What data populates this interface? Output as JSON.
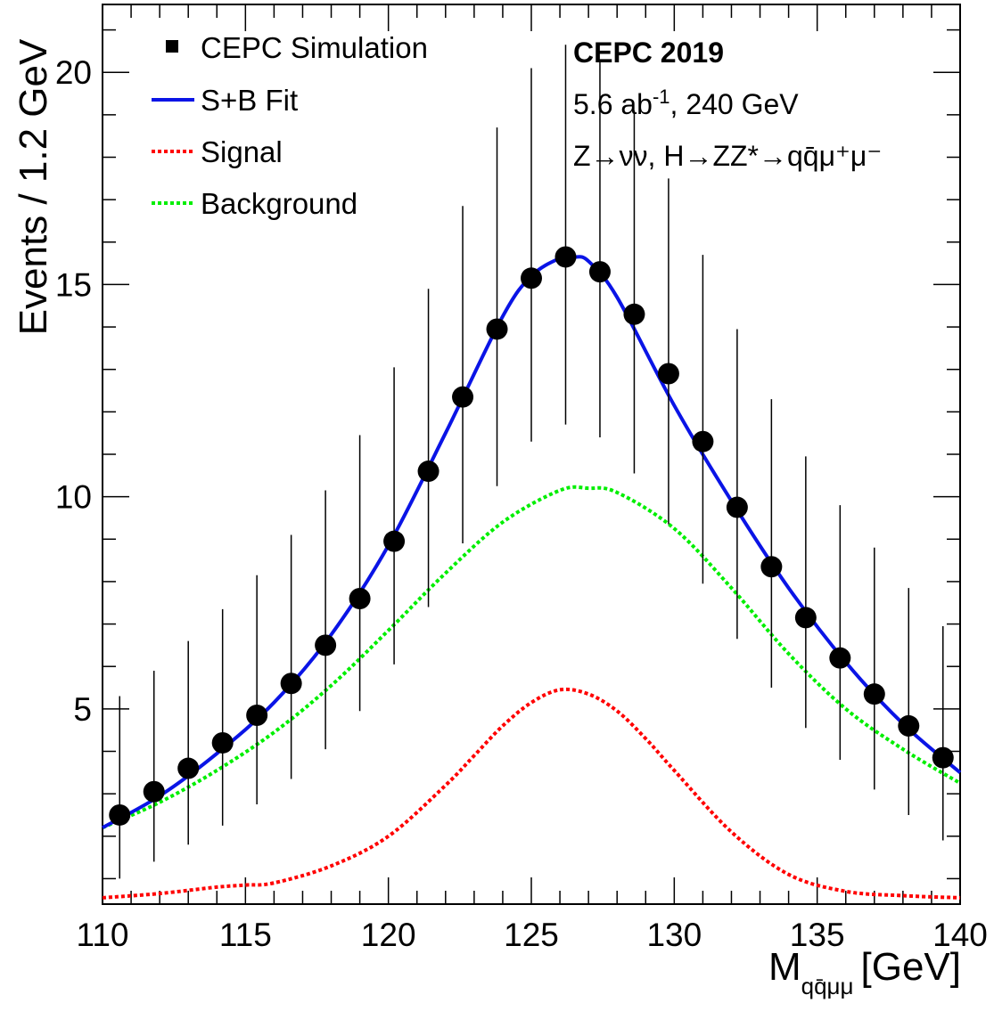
{
  "chart_data": {
    "type": "scatter",
    "xlabel": "M",
    "xlabel_subscript": "qq̄μμ",
    "xlabel_unit": "[GeV]",
    "ylabel": "Events / 1.2  GeV",
    "xlim": [
      110,
      140
    ],
    "ylim": [
      0.4,
      21.6
    ],
    "x_ticks": [
      110,
      115,
      120,
      125,
      130,
      135,
      140
    ],
    "y_ticks": [
      5,
      10,
      15,
      20
    ],
    "grid": false,
    "legend_placement": "top-left",
    "legend": [
      {
        "label": "CEPC Simulation",
        "style": "marker",
        "color": "#000000"
      },
      {
        "label": "S+B Fit",
        "style": "solid",
        "color": "#0a14e6"
      },
      {
        "label": "Signal",
        "style": "dotted",
        "color": "#ff0000"
      },
      {
        "label": "Background",
        "style": "dotted",
        "color": "#00ee00"
      }
    ],
    "annotations": {
      "experiment": "CEPC 2019",
      "lumi_main": "5.6 ab",
      "lumi_sup": "-1",
      "lumi_rest": ", 240 GeV",
      "process": "Z→νν, H→ZZ*→qq̄μ⁺μ⁻"
    },
    "series": [
      {
        "name": "CEPC Simulation",
        "type": "points_with_errors",
        "x": [
          110.6,
          111.8,
          113.0,
          114.2,
          115.4,
          116.6,
          117.8,
          119.0,
          120.2,
          121.4,
          122.6,
          123.8,
          125.0,
          126.2,
          127.4,
          128.6,
          129.8,
          131.0,
          132.2,
          133.4,
          134.6,
          135.8,
          137.0,
          138.2,
          139.4
        ],
        "y": [
          2.5,
          3.05,
          3.6,
          4.2,
          4.85,
          5.6,
          6.5,
          7.6,
          8.95,
          10.6,
          12.35,
          13.95,
          15.15,
          15.65,
          15.3,
          14.3,
          12.9,
          11.3,
          9.75,
          8.35,
          7.15,
          6.2,
          5.35,
          4.6,
          3.85
        ],
        "err_low": [
          1.5,
          1.65,
          1.8,
          1.95,
          2.1,
          2.25,
          2.45,
          2.65,
          2.9,
          3.2,
          3.45,
          3.7,
          3.85,
          3.95,
          3.9,
          3.75,
          3.55,
          3.35,
          3.1,
          2.85,
          2.6,
          2.4,
          2.25,
          2.1,
          1.95
        ],
        "err_high": [
          2.8,
          2.85,
          3.0,
          3.15,
          3.3,
          3.5,
          3.65,
          3.85,
          4.1,
          4.3,
          4.5,
          4.75,
          4.95,
          5.0,
          4.95,
          4.8,
          4.6,
          4.4,
          4.2,
          3.95,
          3.8,
          3.6,
          3.45,
          3.25,
          3.1
        ]
      },
      {
        "name": "S+B Fit",
        "type": "line",
        "x": [
          110,
          112,
          114,
          116,
          118,
          120,
          122,
          124,
          125,
          126,
          126.5,
          127,
          128,
          130,
          132,
          134,
          136,
          138,
          140
        ],
        "y": [
          2.2,
          2.95,
          3.95,
          5.15,
          6.75,
          8.85,
          11.5,
          14.25,
          15.2,
          15.62,
          15.65,
          15.55,
          14.7,
          12.15,
          9.9,
          7.85,
          6.1,
          4.65,
          3.5
        ]
      },
      {
        "name": "Signal",
        "type": "dotted-line",
        "x": [
          110,
          112,
          114,
          115,
          116,
          118,
          120,
          122,
          123,
          124,
          125,
          126,
          127,
          128,
          129,
          130,
          132,
          134,
          136,
          138,
          140
        ],
        "y": [
          0.55,
          0.65,
          0.8,
          0.85,
          0.9,
          1.3,
          2.0,
          3.2,
          3.9,
          4.6,
          5.15,
          5.45,
          5.35,
          4.95,
          4.3,
          3.55,
          2.1,
          1.1,
          0.7,
          0.6,
          0.55
        ]
      },
      {
        "name": "Background",
        "type": "dotted-line",
        "x": [
          110,
          112,
          114,
          116,
          118,
          120,
          122,
          124,
          126,
          127,
          128,
          130,
          132,
          134,
          136,
          138,
          140
        ],
        "y": [
          2.2,
          2.8,
          3.55,
          4.45,
          5.55,
          6.85,
          8.2,
          9.4,
          10.15,
          10.2,
          10.1,
          9.25,
          7.85,
          6.3,
          5.0,
          4.05,
          3.25
        ]
      }
    ]
  }
}
